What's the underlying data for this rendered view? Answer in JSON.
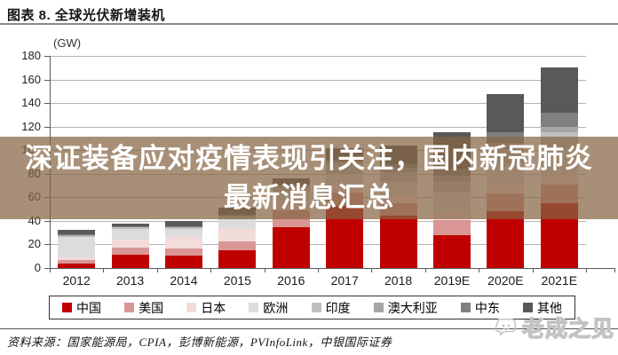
{
  "title": "图表 8. 全球光伏新增装机",
  "overlay": {
    "line1": "深证装备应对疫情表现引关注，国内新冠肺炎",
    "line2": "最新消息汇总",
    "bg_rgba": "rgba(134,100,66,0.72)",
    "text_color": "#ffffff"
  },
  "source_line": "资料来源：国家能源局，CPIA，彭博新能源，PVInfoLink，中银国际证券",
  "watermark": {
    "text": "老成之见",
    "color": "#c3c3c3"
  },
  "chart_data": {
    "type": "bar",
    "stacked": true,
    "unit": "(GW)",
    "categories": [
      "2012",
      "2013",
      "2014",
      "2015",
      "2016",
      "2017",
      "2018",
      "2019E",
      "2020E",
      "2021E"
    ],
    "series": [
      {
        "id": "china",
        "name": "中国",
        "color": "#c00000",
        "values": [
          3.5,
          11.0,
          10.6,
          15.1,
          34.5,
          53.1,
          44.3,
          28.0,
          48.0,
          55.0
        ]
      },
      {
        "id": "usa",
        "name": "美国",
        "color": "#d99694",
        "values": [
          3.3,
          6.0,
          6.2,
          7.3,
          14.8,
          10.6,
          10.7,
          13.0,
          15.0,
          16.0
        ]
      },
      {
        "id": "japan",
        "name": "日本",
        "color": "#f2dcdb",
        "values": [
          2.0,
          6.9,
          9.7,
          10.8,
          8.6,
          7.5,
          6.5,
          7.0,
          7.0,
          8.0
        ]
      },
      {
        "id": "europe",
        "name": "欧洲",
        "color": "#dcdcdc",
        "values": [
          17.5,
          9.5,
          7.0,
          8.5,
          6.9,
          8.6,
          11.3,
          16.7,
          19.0,
          22.0
        ]
      },
      {
        "id": "india",
        "name": "印度",
        "color": "#bfbfbf",
        "values": [
          1.0,
          1.0,
          0.9,
          2.0,
          4.0,
          9.1,
          8.3,
          9.0,
          12.0,
          14.0
        ]
      },
      {
        "id": "australia",
        "name": "澳大利亚",
        "color": "#a6a6a6",
        "values": [
          1.0,
          0.8,
          0.9,
          0.9,
          0.8,
          1.3,
          3.8,
          4.5,
          5.0,
          5.0
        ]
      },
      {
        "id": "middle-east",
        "name": "中东",
        "color": "#808080",
        "values": [
          0.5,
          0.3,
          0.4,
          0.5,
          1.0,
          2.0,
          3.6,
          6.0,
          9.0,
          12.0
        ]
      },
      {
        "id": "others",
        "name": "其他",
        "color": "#595959",
        "values": [
          3.5,
          2.5,
          4.5,
          5.9,
          5.4,
          9.8,
          15.5,
          30.8,
          33.0,
          38.0
        ]
      }
    ],
    "totals_approx": [
      32.3,
      38.0,
      40.2,
      51.0,
      76.0,
      102.0,
      104.0,
      115.0,
      148.0,
      170.0
    ],
    "ylim": [
      0,
      180
    ],
    "yticks": [
      0,
      20,
      40,
      60,
      80,
      100,
      120,
      140,
      160,
      180
    ],
    "grid": true,
    "grid_color": "#b3b3b3",
    "axis_color": "#595959",
    "legend_position": "bottom"
  }
}
